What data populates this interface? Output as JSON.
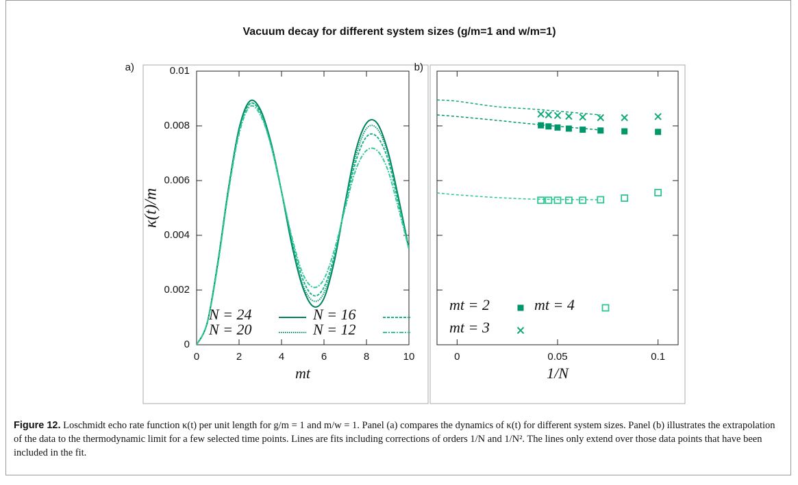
{
  "figure": {
    "title": "Vacuum decay for different system sizes (g/m=1  and  w/m=1)",
    "caption_label": "Figure 12.",
    "caption_text": "Loschmidt echo rate function κ(t) per unit length for g/m = 1 and m/w = 1. Panel (a) compares the dynamics of κ(t) for different system sizes. Panel (b) illustrates the extrapolation of the data to the thermodynamic limit for a few selected time points. Lines are fits including corrections of orders 1/N and 1/N². The lines only extend over those data points that have been included in the fit."
  },
  "chart_data": [
    {
      "type": "line",
      "panel_label": "a)",
      "xlabel": "mt",
      "ylabel": "κ(t)/m",
      "x": [
        0,
        0.5,
        1,
        1.5,
        2,
        2.5,
        3,
        3.5,
        4,
        4.5,
        5,
        5.5,
        6,
        6.5,
        7,
        7.5,
        8,
        8.5,
        9,
        9.5,
        10
      ],
      "series": [
        {
          "name": "N = 24",
          "color": "#00805a",
          "dash": "none",
          "values": [
            0,
            0.0008,
            0.003,
            0.0057,
            0.0079,
            0.0089,
            0.0086,
            0.0074,
            0.0056,
            0.0036,
            0.0021,
            0.0014,
            0.0017,
            0.0031,
            0.0052,
            0.0071,
            0.0081,
            0.0081,
            0.0071,
            0.0054,
            0.0035
          ]
        },
        {
          "name": "N = 20",
          "color": "#009a6e",
          "dash": "1.5 1.5",
          "values": [
            0,
            0.0008,
            0.003,
            0.0057,
            0.0078,
            0.0088,
            0.0085,
            0.0074,
            0.0056,
            0.0037,
            0.0022,
            0.0016,
            0.0019,
            0.0032,
            0.0052,
            0.0069,
            0.0079,
            0.0079,
            0.007,
            0.0053,
            0.0035
          ]
        },
        {
          "name": "N = 16",
          "color": "#14b486",
          "dash": "4 2",
          "values": [
            0,
            0.0008,
            0.003,
            0.0056,
            0.0078,
            0.0088,
            0.0085,
            0.0073,
            0.0056,
            0.0038,
            0.0024,
            0.0018,
            0.0021,
            0.0033,
            0.0051,
            0.0067,
            0.0076,
            0.0076,
            0.0068,
            0.0052,
            0.0035
          ]
        },
        {
          "name": "N = 12",
          "color": "#34c99a",
          "dash": "6 2 2 2",
          "values": [
            0,
            0.0008,
            0.0029,
            0.0056,
            0.0077,
            0.0087,
            0.0084,
            0.0073,
            0.0056,
            0.0039,
            0.0026,
            0.0021,
            0.0024,
            0.0035,
            0.005,
            0.0064,
            0.0071,
            0.0071,
            0.0064,
            0.005,
            0.0035
          ]
        }
      ],
      "xlim": [
        0,
        10
      ],
      "xticks": [
        0,
        2,
        4,
        6,
        8,
        10
      ],
      "ylim": [
        0,
        0.01
      ],
      "yticks": [
        0,
        0.002,
        0.004,
        0.006,
        0.008,
        0.01
      ],
      "show_ytick_labels": true,
      "legend": "lower left"
    },
    {
      "type": "scatter",
      "panel_label": "b)",
      "xlabel": "1/N",
      "x": [
        0.0417,
        0.0455,
        0.05,
        0.0556,
        0.0625,
        0.0714,
        0.0833,
        0.1
      ],
      "series": [
        {
          "name": "mt = 2",
          "color": "#00966b",
          "marker": "filled-square",
          "values": [
            0.00802,
            0.00798,
            0.00794,
            0.0079,
            0.00786,
            0.00783,
            0.0078,
            0.00778
          ],
          "fit_x": [
            -0.01,
            0,
            0.02,
            0.04,
            0.0714
          ],
          "fit_values": [
            0.0084,
            0.00834,
            0.0082,
            0.00805,
            0.00785
          ]
        },
        {
          "name": "mt = 3",
          "color": "#10a878",
          "marker": "cross",
          "values": [
            0.00843,
            0.0084,
            0.00838,
            0.00835,
            0.00832,
            0.0083,
            0.0083,
            0.00834
          ],
          "fit_x": [
            -0.01,
            0,
            0.02,
            0.04,
            0.0714
          ],
          "fit_values": [
            0.00895,
            0.0089,
            0.0087,
            0.0086,
            0.0084
          ]
        },
        {
          "name": "mt = 4",
          "color": "#2cc592",
          "marker": "open-square",
          "values": [
            0.00528,
            0.00528,
            0.00528,
            0.00528,
            0.00528,
            0.0053,
            0.00536,
            0.00556
          ],
          "fit_x": [
            -0.01,
            0,
            0.02,
            0.04,
            0.0714
          ],
          "fit_values": [
            0.00555,
            0.00548,
            0.00538,
            0.00532,
            0.0053
          ]
        }
      ],
      "xlim": [
        -0.01,
        0.11
      ],
      "xticks": [
        0,
        0.05,
        0.1
      ],
      "ylim": [
        0,
        0.01
      ],
      "yticks": [
        0,
        0.002,
        0.004,
        0.006,
        0.008,
        0.01
      ],
      "show_ytick_labels": false,
      "legend": "lower left"
    }
  ]
}
